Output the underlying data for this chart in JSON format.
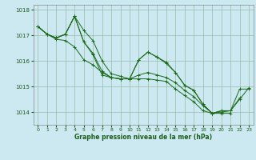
{
  "title": "",
  "xlabel": "Graphe pression niveau de la mer (hPa)",
  "ylabel": "",
  "bg_color": "#cce8f0",
  "grid_color": "#99bbaa",
  "line_color": "#1a6b1a",
  "marker_color": "#1a6b1a",
  "text_color": "#1a5c1a",
  "ylim": [
    1013.5,
    1018.2
  ],
  "xlim": [
    -0.5,
    23.5
  ],
  "yticks": [
    1014,
    1015,
    1016,
    1017,
    1018
  ],
  "xticks": [
    0,
    1,
    2,
    3,
    4,
    5,
    6,
    7,
    8,
    9,
    10,
    11,
    12,
    13,
    14,
    15,
    16,
    17,
    18,
    19,
    20,
    21,
    22,
    23
  ],
  "series": [
    [
      1017.35,
      1017.05,
      1016.9,
      1017.05,
      1017.75,
      1017.2,
      1016.8,
      1016.0,
      1015.5,
      1015.4,
      1015.3,
      1015.3,
      1015.3,
      1015.25,
      1015.2,
      1014.9,
      1014.65,
      1014.4,
      1014.05,
      1013.95,
      1014.0,
      1014.05,
      1014.9,
      1014.9
    ],
    [
      1017.35,
      1017.05,
      1016.9,
      1017.05,
      1017.75,
      1016.75,
      1016.3,
      1015.6,
      1015.35,
      1015.3,
      1015.3,
      1016.05,
      1016.35,
      1016.15,
      1015.9,
      1015.55,
      1015.05,
      1014.85,
      1014.3,
      1013.95,
      1014.05,
      1014.05,
      1014.5,
      1014.95
    ],
    [
      1017.35,
      1017.05,
      1016.85,
      1016.8,
      1016.55,
      1016.05,
      1015.85,
      1015.55,
      1015.35,
      1015.3,
      1015.3,
      1015.45,
      1015.55,
      1015.45,
      1015.35,
      1015.15,
      1014.85,
      1014.6,
      1014.25,
      1013.95,
      1013.95,
      1013.95,
      null,
      null
    ],
    [
      1017.35,
      1017.05,
      1016.9,
      1017.05,
      1017.75,
      1016.75,
      1016.25,
      1015.45,
      1015.35,
      1015.3,
      1015.3,
      1016.05,
      1016.35,
      1016.15,
      1015.95,
      1015.55,
      1015.05,
      1014.85,
      1014.3,
      1013.95,
      1014.05,
      1014.05,
      1014.55,
      null
    ]
  ]
}
